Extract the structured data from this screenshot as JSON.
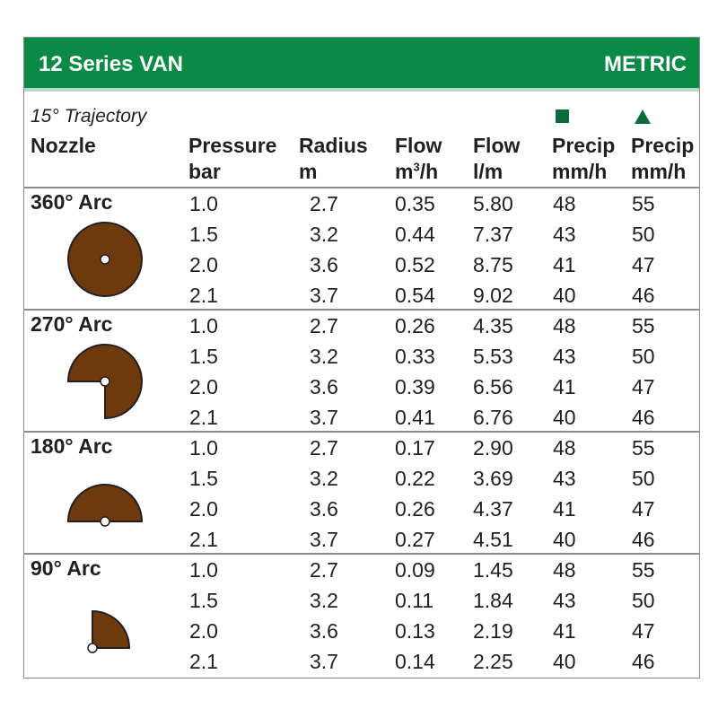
{
  "header": {
    "title": "12 Series VAN",
    "units": "METRIC"
  },
  "trajectory": "15° Trajectory",
  "columns": {
    "nozzle": "Nozzle",
    "pressure": {
      "line1": "Pressure",
      "line2": "bar"
    },
    "radius": {
      "line1": "Radius",
      "line2": "m"
    },
    "flow_m3h": {
      "line1": "Flow",
      "line2_prefix": "m",
      "line2_sup": "3",
      "line2_suffix": "/h"
    },
    "flow_lm": {
      "line1": "Flow",
      "line2": "l/m"
    },
    "precip_square": {
      "line1": "Precip",
      "line2": "mm/h",
      "symbol": "square"
    },
    "precip_triangle": {
      "line1": "Precip",
      "line2": "mm/h",
      "symbol": "triangle"
    }
  },
  "colors": {
    "brand": "#0a8a45",
    "symbol": "#0a6b3c",
    "nozzle_fill": "#6e3a0d"
  },
  "groups": [
    {
      "arc": "360° Arc",
      "degrees": 360,
      "rows": [
        [
          "1.0",
          "2.7",
          "0.35",
          "5.80",
          "48",
          "55"
        ],
        [
          "1.5",
          "3.2",
          "0.44",
          "7.37",
          "43",
          "50"
        ],
        [
          "2.0",
          "3.6",
          "0.52",
          "8.75",
          "41",
          "47"
        ],
        [
          "2.1",
          "3.7",
          "0.54",
          "9.02",
          "40",
          "46"
        ]
      ]
    },
    {
      "arc": "270° Arc",
      "degrees": 270,
      "rows": [
        [
          "1.0",
          "2.7",
          "0.26",
          "4.35",
          "48",
          "55"
        ],
        [
          "1.5",
          "3.2",
          "0.33",
          "5.53",
          "43",
          "50"
        ],
        [
          "2.0",
          "3.6",
          "0.39",
          "6.56",
          "41",
          "47"
        ],
        [
          "2.1",
          "3.7",
          "0.41",
          "6.76",
          "40",
          "46"
        ]
      ]
    },
    {
      "arc": "180° Arc",
      "degrees": 180,
      "rows": [
        [
          "1.0",
          "2.7",
          "0.17",
          "2.90",
          "48",
          "55"
        ],
        [
          "1.5",
          "3.2",
          "0.22",
          "3.69",
          "43",
          "50"
        ],
        [
          "2.0",
          "3.6",
          "0.26",
          "4.37",
          "41",
          "47"
        ],
        [
          "2.1",
          "3.7",
          "0.27",
          "4.51",
          "40",
          "46"
        ]
      ]
    },
    {
      "arc": "90° Arc",
      "degrees": 90,
      "rows": [
        [
          "1.0",
          "2.7",
          "0.09",
          "1.45",
          "48",
          "55"
        ],
        [
          "1.5",
          "3.2",
          "0.11",
          "1.84",
          "43",
          "50"
        ],
        [
          "2.0",
          "3.6",
          "0.13",
          "2.19",
          "41",
          "47"
        ],
        [
          "2.1",
          "3.7",
          "0.14",
          "2.25",
          "40",
          "46"
        ]
      ]
    }
  ]
}
